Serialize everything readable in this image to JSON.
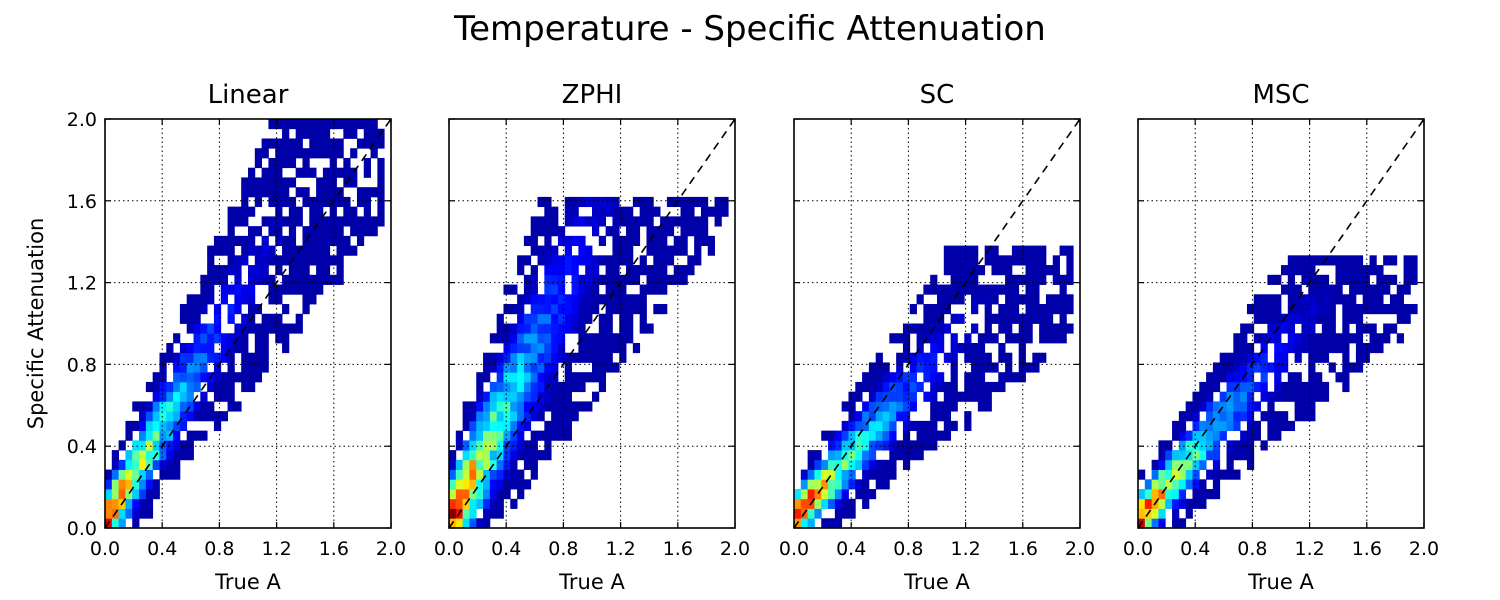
{
  "suptitle": "Temperature - Specific Attenuation",
  "chart_data": [
    {
      "type": "heatmap",
      "title": "Linear",
      "xlabel": "True A",
      "ylabel": "Specific Attenuation",
      "xlim": [
        0.0,
        2.0
      ],
      "ylim": [
        0.0,
        2.0
      ],
      "xticks": [
        "0.0",
        "0.4",
        "0.8",
        "1.2",
        "1.6",
        "2.0"
      ],
      "yticks": [
        "0.0",
        "0.4",
        "0.8",
        "1.2",
        "1.6",
        "2.0"
      ],
      "grid": true,
      "reference_line": "y = x (dashed)",
      "density_ridge": {
        "slope": 1.18,
        "intercept": 0.03,
        "spread": 0.13,
        "x_extent": [
          0.0,
          1.95
        ],
        "y_cap": 2.0
      },
      "colormap": "jet"
    },
    {
      "type": "heatmap",
      "title": "ZPHI",
      "xlabel": "True A",
      "ylabel": "",
      "xlim": [
        0.0,
        2.0
      ],
      "ylim": [
        0.0,
        2.0
      ],
      "xticks": [
        "0.0",
        "0.4",
        "0.8",
        "1.2",
        "1.6",
        "2.0"
      ],
      "yticks": [],
      "grid": true,
      "reference_line": "y = x (dashed)",
      "density_ridge": {
        "slope": 1.45,
        "intercept": 0.02,
        "spread": 0.22,
        "x_extent": [
          0.0,
          1.95
        ],
        "y_cap": 1.6
      },
      "colormap": "jet"
    },
    {
      "type": "heatmap",
      "title": "SC",
      "xlabel": "True A",
      "ylabel": "",
      "xlim": [
        0.0,
        2.0
      ],
      "ylim": [
        0.0,
        2.0
      ],
      "xticks": [
        "0.0",
        "0.4",
        "0.8",
        "1.2",
        "1.6",
        "2.0"
      ],
      "yticks": [],
      "grid": true,
      "reference_line": "y = x (dashed)",
      "density_ridge": {
        "slope": 0.78,
        "intercept": 0.05,
        "spread": 0.1,
        "x_extent": [
          0.0,
          1.95
        ],
        "y_cap": 1.4
      },
      "colormap": "jet"
    },
    {
      "type": "heatmap",
      "title": "MSC",
      "xlabel": "True A",
      "ylabel": "",
      "xlim": [
        0.0,
        2.0
      ],
      "ylim": [
        0.0,
        2.0
      ],
      "xticks": [
        "0.0",
        "0.4",
        "0.8",
        "1.2",
        "1.6",
        "2.0"
      ],
      "yticks": [],
      "grid": true,
      "reference_line": "y = x (dashed)",
      "density_ridge": {
        "slope": 0.83,
        "intercept": 0.04,
        "spread": 0.1,
        "x_extent": [
          0.0,
          1.95
        ],
        "y_cap": 1.35
      },
      "colormap": "jet"
    }
  ]
}
